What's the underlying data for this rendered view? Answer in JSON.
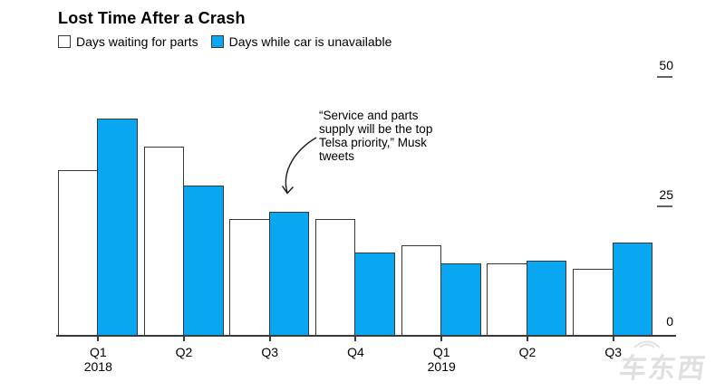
{
  "title": "Lost Time After a Crash",
  "legend": {
    "items": [
      {
        "label": "Days waiting for parts",
        "swatch": "white"
      },
      {
        "label": "Days while car is unavailable",
        "swatch": "blue"
      }
    ]
  },
  "annotation": {
    "text": "“Service and parts\nsupply will be the top\nTelsa priority,” Musk\ntweets"
  },
  "watermark": {
    "text": "车东西"
  },
  "colors": {
    "bar_blue": "#09a7f2",
    "bar_white": "#ffffff",
    "bar_border": "#373737",
    "axis": "#3a3a3a",
    "text": "#000000",
    "watermark": "#e0e0e0"
  },
  "chart_data": {
    "type": "bar",
    "categories": [
      "Q1 2018",
      "Q2 2018",
      "Q3 2018",
      "Q4 2018",
      "Q1 2019",
      "Q2 2019",
      "Q3 2019"
    ],
    "x_tick_labels": [
      "Q1",
      "Q2",
      "Q3",
      "Q4",
      "Q1",
      "Q2",
      "Q3"
    ],
    "year_labels": [
      {
        "index": 0,
        "label": "2018"
      },
      {
        "index": 4,
        "label": "2019"
      }
    ],
    "series": [
      {
        "name": "Days waiting for parts",
        "values": [
          32,
          36.5,
          22.5,
          22.5,
          17.5,
          14,
          13
        ]
      },
      {
        "name": "Days while car is unavailable",
        "values": [
          42,
          29,
          24,
          16,
          14,
          14.5,
          18
        ]
      }
    ],
    "ylim": [
      0,
      50
    ],
    "yticks": [
      0,
      25,
      50
    ],
    "legend_position": "top-left",
    "grid": false
  }
}
